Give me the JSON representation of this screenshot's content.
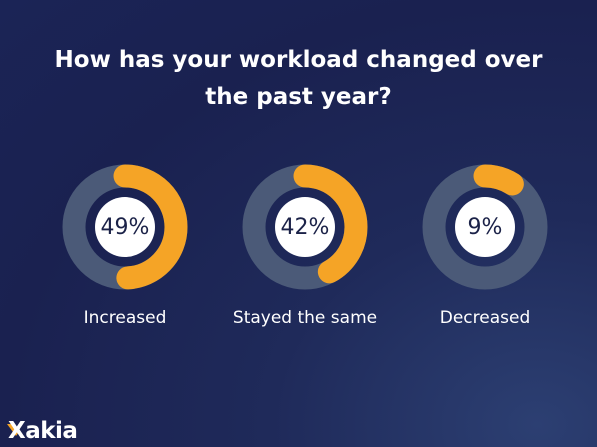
{
  "chart_data": {
    "type": "donut",
    "title": "How has your workload changed over the past year?",
    "categories": [
      "Increased",
      "Stayed the same",
      "Decreased"
    ],
    "values": [
      49,
      42,
      9
    ],
    "value_labels": [
      "49%",
      "42%",
      "9%"
    ],
    "color": "#f5a426",
    "track_color": "#4b5a78"
  },
  "logo": "Xakia"
}
